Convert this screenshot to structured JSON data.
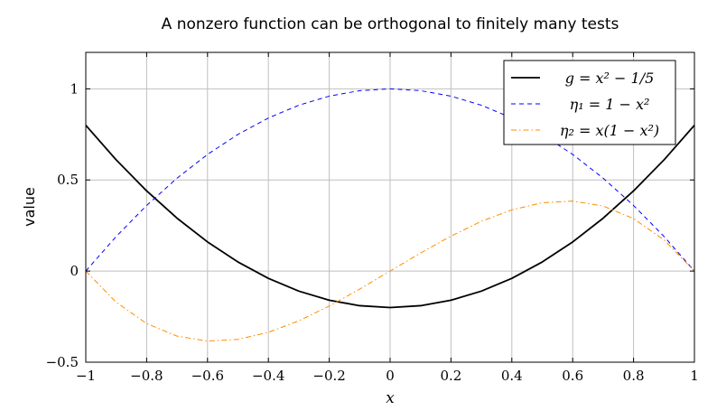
{
  "chart_data": {
    "type": "line",
    "title": "A nonzero function can be orthogonal to finitely many tests",
    "xlabel": "x",
    "ylabel": "value",
    "xlim": [
      -1,
      1
    ],
    "ylim": [
      -0.5,
      1.2
    ],
    "grid": true,
    "legend_position": "top-right",
    "xticks": [
      "−1",
      "−0.8",
      "−0.6",
      "−0.4",
      "−0.2",
      "0",
      "0.2",
      "0.4",
      "0.6",
      "0.8",
      "1"
    ],
    "xtick_values": [
      -1,
      -0.8,
      -0.6,
      -0.4,
      -0.2,
      0,
      0.2,
      0.4,
      0.6,
      0.8,
      1
    ],
    "yticks": [
      "−0.5",
      "0",
      "0.5",
      "1"
    ],
    "ytick_values": [
      -0.5,
      0,
      0.5,
      1
    ],
    "x": [
      -1,
      -0.9,
      -0.8,
      -0.7,
      -0.6,
      -0.5,
      -0.4,
      -0.3,
      -0.2,
      -0.1,
      0,
      0.1,
      0.2,
      0.3,
      0.4,
      0.5,
      0.6,
      0.7,
      0.8,
      0.9,
      1
    ],
    "series": [
      {
        "name": "g = x² − 1/5",
        "color": "#000000",
        "style": "solid",
        "values": [
          0.8,
          0.61,
          0.44,
          0.29,
          0.16,
          0.05,
          -0.04,
          -0.11,
          -0.16,
          -0.19,
          -0.2,
          -0.19,
          -0.16,
          -0.11,
          -0.04,
          0.05,
          0.16,
          0.29,
          0.44,
          0.61,
          0.8
        ]
      },
      {
        "name": "η₁ = 1 − x²",
        "color": "#0000ff",
        "style": "dashed",
        "values": [
          0,
          0.19,
          0.36,
          0.51,
          0.64,
          0.75,
          0.84,
          0.91,
          0.96,
          0.99,
          1,
          0.99,
          0.96,
          0.91,
          0.84,
          0.75,
          0.64,
          0.51,
          0.36,
          0.19,
          0
        ]
      },
      {
        "name": "η₂ = x(1 − x²)",
        "color": "#ff8c00",
        "style": "dashdot",
        "values": [
          0,
          -0.171,
          -0.288,
          -0.357,
          -0.384,
          -0.375,
          -0.336,
          -0.273,
          -0.192,
          -0.099,
          0,
          0.099,
          0.192,
          0.273,
          0.336,
          0.375,
          0.384,
          0.357,
          0.288,
          0.171,
          0
        ]
      }
    ]
  }
}
